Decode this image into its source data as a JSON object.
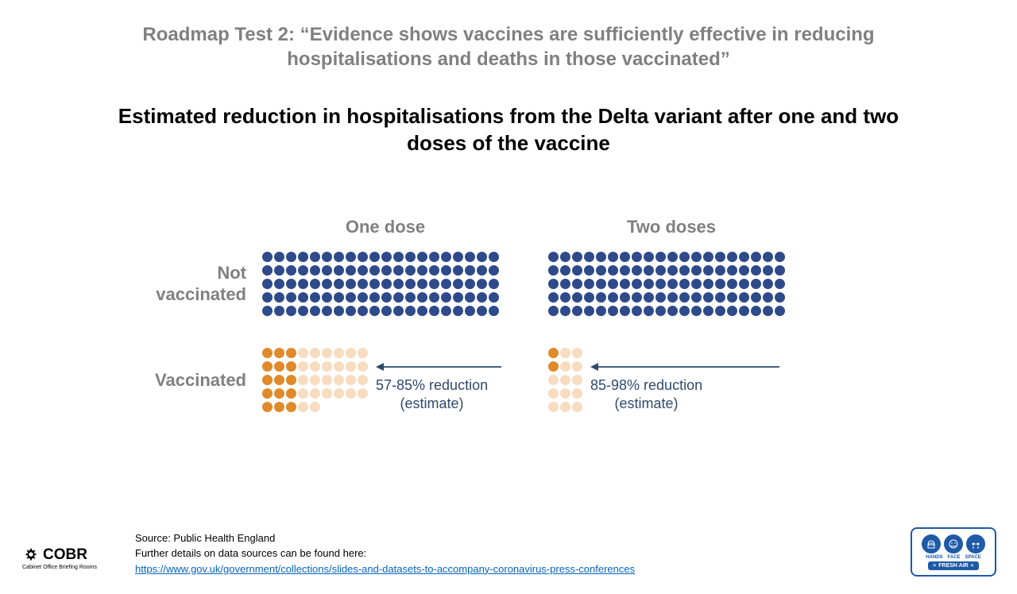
{
  "title": "Roadmap Test 2: “Evidence shows vaccines are sufficiently effective in reducing hospitalisations and deaths in those vaccinated”",
  "subtitle": "Estimated reduction in hospitalisations from the Delta variant after one and two doses of the vaccine",
  "columns": {
    "one_dose": "One dose",
    "two_doses": "Two doses"
  },
  "row_labels": {
    "not_vaccinated": "Not\nvaccinated",
    "vaccinated": "Vaccinated"
  },
  "colors": {
    "not_vaccinated_dot": "#2e4a8a",
    "vaccinated_dark": "#e08a2a",
    "vaccinated_light": "#f8dcc0",
    "arrow": "#2e4a6b",
    "title_grey": "#808080",
    "link": "#0563c1",
    "badge_blue": "#1e5aa8"
  },
  "not_vaccinated_grid": {
    "rows": 5,
    "cols": 20,
    "dot_size": 13
  },
  "vaccinated_one_dose": {
    "rows": 5,
    "cols": 9,
    "dark_per_row": [
      3,
      3,
      3,
      3,
      3
    ],
    "light_per_row": [
      6,
      6,
      6,
      6,
      2
    ]
  },
  "vaccinated_two_doses": {
    "rows": 5,
    "cols_layout": [
      {
        "dark": 1,
        "light": 2
      },
      {
        "dark": 1,
        "light": 2
      },
      {
        "dark": 0,
        "light": 3
      },
      {
        "dark": 0,
        "light": 3
      },
      {
        "dark": 0,
        "light": 3
      }
    ]
  },
  "annotations": {
    "one_dose": "57-85% reduction\n(estimate)",
    "two_doses": "85-98% reduction\n(estimate)"
  },
  "footer": {
    "source": "Source: Public Health England",
    "details": "Further details on data sources can be found here:",
    "link": "https://www.gov.uk/government/collections/slides-and-datasets-to-accompany-coronavirus-press-conferences"
  },
  "cobr": {
    "main": "COBR",
    "sub": "Cabinet Office Briefing Rooms"
  },
  "badge": {
    "labels": [
      "HANDS",
      "FACE",
      "SPACE"
    ],
    "bottom": "FRESH AIR"
  }
}
